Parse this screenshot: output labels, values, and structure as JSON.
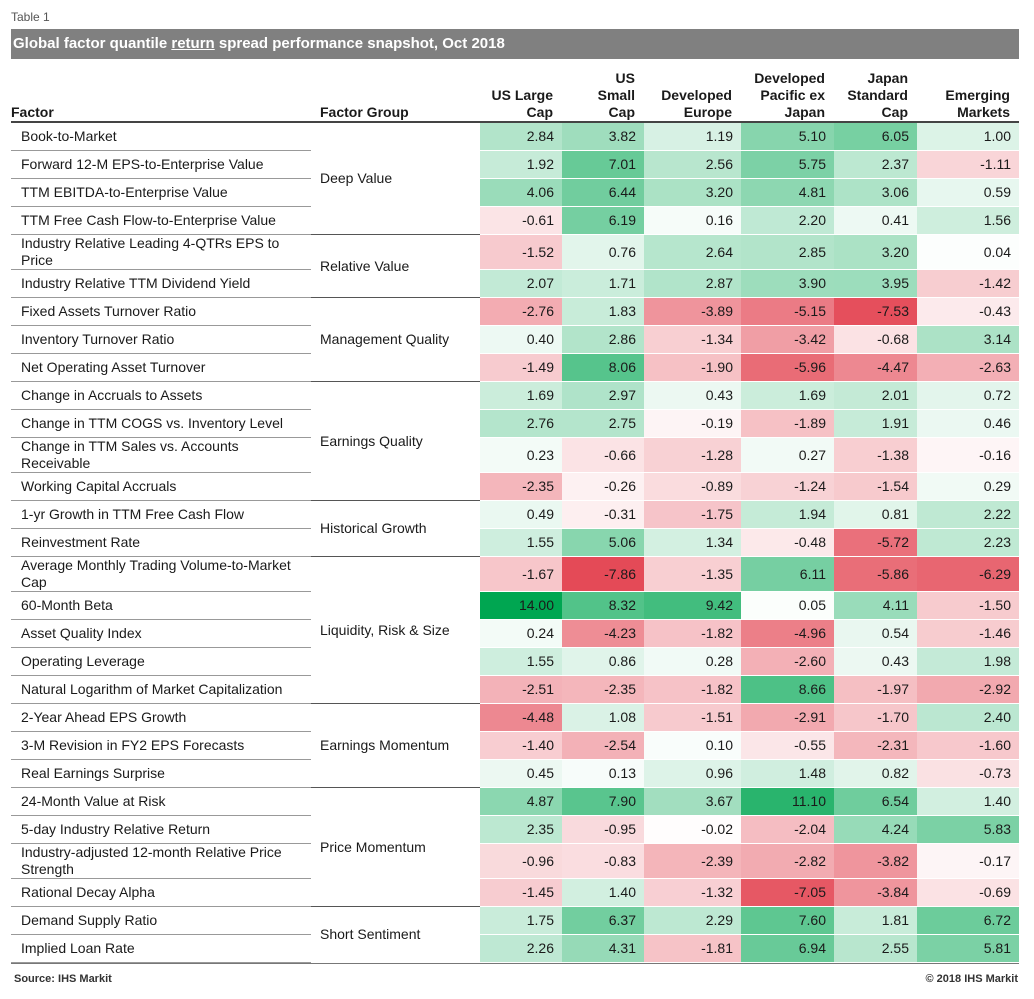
{
  "table_label": "Table 1",
  "title": {
    "before": "Global factor quantile ",
    "underlined": "return",
    "after": " spread performance snapshot, Oct 2018"
  },
  "headers": {
    "factor": "Factor",
    "group": "Factor Group",
    "columns": [
      [
        "US Large",
        "Cap"
      ],
      [
        "US",
        "Small",
        "Cap"
      ],
      [
        "Developed",
        "Europe"
      ],
      [
        "Developed",
        "Pacific ex",
        "Japan"
      ],
      [
        "Japan",
        "Standard",
        "Cap"
      ],
      [
        "Emerging",
        "Markets"
      ]
    ]
  },
  "groups": [
    {
      "name": "Deep Value",
      "rows": [
        {
          "factor": "Book-to-Market",
          "values": [
            "2.84",
            "3.82",
            "1.19",
            "5.10",
            "6.05",
            "1.00"
          ]
        },
        {
          "factor": "Forward 12-M EPS-to-Enterprise Value",
          "values": [
            "1.92",
            "7.01",
            "2.56",
            "5.75",
            "2.37",
            "-1.11"
          ]
        },
        {
          "factor": "TTM EBITDA-to-Enterprise Value",
          "values": [
            "4.06",
            "6.44",
            "3.20",
            "4.81",
            "3.06",
            "0.59"
          ]
        },
        {
          "factor": "TTM Free Cash Flow-to-Enterprise Value",
          "values": [
            "-0.61",
            "6.19",
            "0.16",
            "2.20",
            "0.41",
            "1.56"
          ]
        }
      ]
    },
    {
      "name": "Relative Value",
      "rows": [
        {
          "factor": "Industry Relative Leading 4-QTRs EPS to Price",
          "values": [
            "-1.52",
            "0.76",
            "2.64",
            "2.85",
            "3.20",
            "0.04"
          ]
        },
        {
          "factor": "Industry Relative TTM Dividend Yield",
          "values": [
            "2.07",
            "1.71",
            "2.87",
            "3.90",
            "3.95",
            "-1.42"
          ]
        }
      ]
    },
    {
      "name": "Management Quality",
      "rows": [
        {
          "factor": "Fixed Assets Turnover Ratio",
          "values": [
            "-2.76",
            "1.83",
            "-3.89",
            "-5.15",
            "-7.53",
            "-0.43"
          ]
        },
        {
          "factor": "Inventory Turnover Ratio",
          "values": [
            "0.40",
            "2.86",
            "-1.34",
            "-3.42",
            "-0.68",
            "3.14"
          ]
        },
        {
          "factor": "Net Operating Asset Turnover",
          "values": [
            "-1.49",
            "8.06",
            "-1.90",
            "-5.96",
            "-4.47",
            "-2.63"
          ]
        }
      ]
    },
    {
      "name": "Earnings Quality",
      "rows": [
        {
          "factor": "Change in Accruals to Assets",
          "values": [
            "1.69",
            "2.97",
            "0.43",
            "1.69",
            "2.01",
            "0.72"
          ]
        },
        {
          "factor": "Change in TTM COGS vs. Inventory Level",
          "values": [
            "2.76",
            "2.75",
            "-0.19",
            "-1.89",
            "1.91",
            "0.46"
          ]
        },
        {
          "factor": "Change in TTM Sales vs. Accounts Receivable",
          "values": [
            "0.23",
            "-0.66",
            "-1.28",
            "0.27",
            "-1.38",
            "-0.16"
          ]
        },
        {
          "factor": "Working Capital Accruals",
          "values": [
            "-2.35",
            "-0.26",
            "-0.89",
            "-1.24",
            "-1.54",
            "0.29"
          ]
        }
      ]
    },
    {
      "name": "Historical Growth",
      "rows": [
        {
          "factor": "1-yr Growth in TTM Free Cash Flow",
          "values": [
            "0.49",
            "-0.31",
            "-1.75",
            "1.94",
            "0.81",
            "2.22"
          ]
        },
        {
          "factor": "Reinvestment Rate",
          "values": [
            "1.55",
            "5.06",
            "1.34",
            "-0.48",
            "-5.72",
            "2.23"
          ]
        }
      ]
    },
    {
      "name": "Liquidity, Risk & Size",
      "rows": [
        {
          "factor": "Average Monthly Trading Volume-to-Market Cap",
          "values": [
            "-1.67",
            "-7.86",
            "-1.35",
            "6.11",
            "-5.86",
            "-6.29"
          ]
        },
        {
          "factor": "60-Month Beta",
          "values": [
            "14.00",
            "8.32",
            "9.42",
            "0.05",
            "4.11",
            "-1.50"
          ]
        },
        {
          "factor": "Asset Quality Index",
          "values": [
            "0.24",
            "-4.23",
            "-1.82",
            "-4.96",
            "0.54",
            "-1.46"
          ]
        },
        {
          "factor": "Operating Leverage",
          "values": [
            "1.55",
            "0.86",
            "0.28",
            "-2.60",
            "0.43",
            "1.98"
          ]
        },
        {
          "factor": "Natural Logarithm of Market Capitalization",
          "values": [
            "-2.51",
            "-2.35",
            "-1.82",
            "8.66",
            "-1.97",
            "-2.92"
          ]
        }
      ]
    },
    {
      "name": "Earnings Momentum",
      "rows": [
        {
          "factor": "2-Year Ahead EPS Growth",
          "values": [
            "-4.48",
            "1.08",
            "-1.51",
            "-2.91",
            "-1.70",
            "2.40"
          ]
        },
        {
          "factor": "3-M Revision in FY2 EPS Forecasts",
          "values": [
            "-1.40",
            "-2.54",
            "0.10",
            "-0.55",
            "-2.31",
            "-1.60"
          ]
        },
        {
          "factor": "Real Earnings Surprise",
          "values": [
            "0.45",
            "0.13",
            "0.96",
            "1.48",
            "0.82",
            "-0.73"
          ]
        }
      ]
    },
    {
      "name": "Price Momentum",
      "rows": [
        {
          "factor": "24-Month Value at Risk",
          "values": [
            "4.87",
            "7.90",
            "3.67",
            "11.10",
            "6.54",
            "1.40"
          ]
        },
        {
          "factor": "5-day Industry Relative Return",
          "values": [
            "2.35",
            "-0.95",
            "-0.02",
            "-2.04",
            "4.24",
            "5.83"
          ]
        },
        {
          "factor": "Industry-adjusted 12-month Relative Price Strength",
          "values": [
            "-0.96",
            "-0.83",
            "-2.39",
            "-2.82",
            "-3.82",
            "-0.17"
          ]
        },
        {
          "factor": "Rational Decay Alpha",
          "values": [
            "-1.45",
            "1.40",
            "-1.32",
            "-7.05",
            "-3.84",
            "-0.69"
          ]
        }
      ]
    },
    {
      "name": "Short Sentiment",
      "rows": [
        {
          "factor": "Demand Supply Ratio",
          "values": [
            "1.75",
            "6.37",
            "2.29",
            "7.60",
            "1.81",
            "6.72"
          ]
        },
        {
          "factor": "Implied Loan Rate",
          "values": [
            "2.26",
            "4.31",
            "-1.81",
            "6.94",
            "2.55",
            "5.81"
          ]
        }
      ]
    }
  ],
  "colors": {
    "positive": "#00a651",
    "negative": "#e0303f",
    "title_bg": "#808080"
  },
  "footer": {
    "source": "Source: IHS Markit",
    "copyright": "© 2018 IHS Markit"
  }
}
